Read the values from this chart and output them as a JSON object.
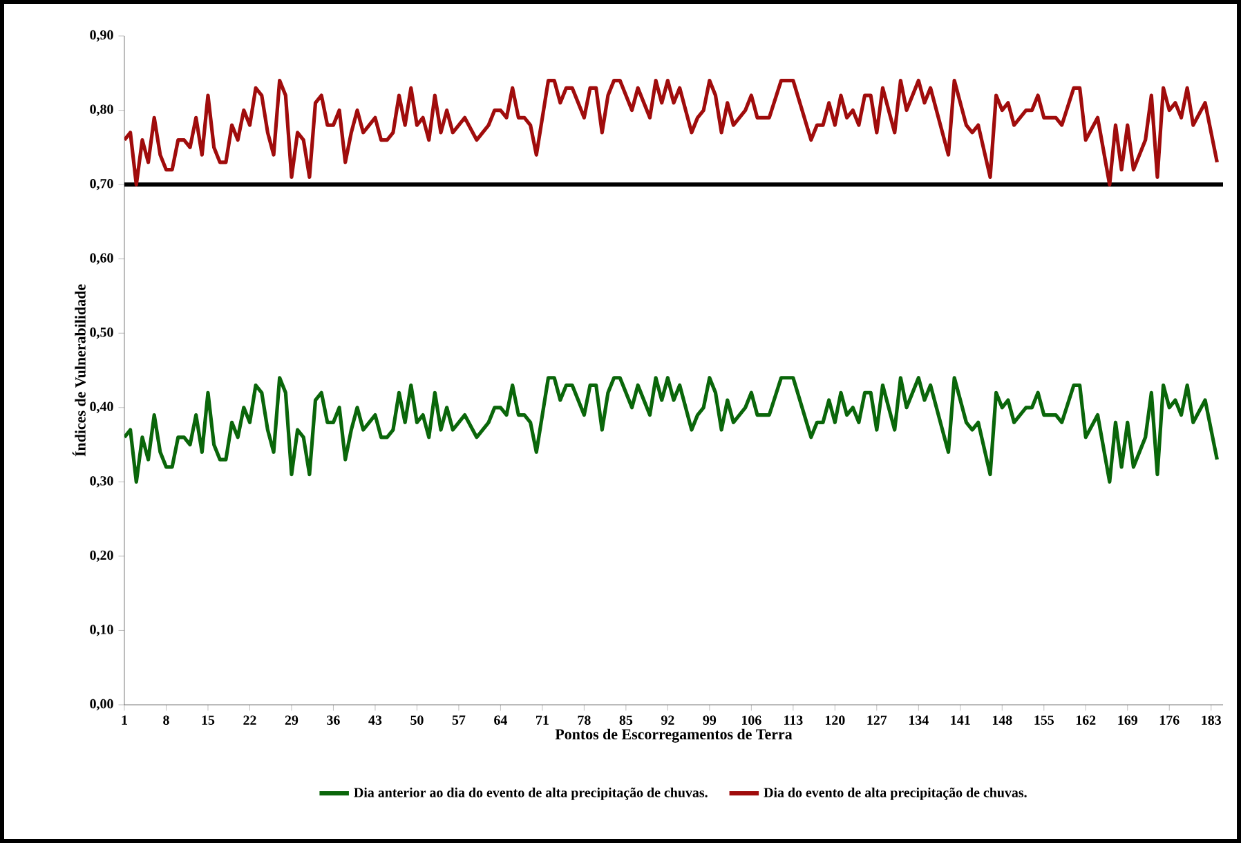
{
  "chart_data": {
    "type": "line",
    "xlabel": "Pontos de Escorregamentos de Terra",
    "ylabel": "Índices de Vulnerabilidade",
    "x": [
      1,
      2,
      3,
      4,
      5,
      6,
      7,
      8,
      9,
      10,
      11,
      12,
      13,
      14,
      15,
      16,
      17,
      18,
      19,
      20,
      21,
      22,
      23,
      24,
      25,
      26,
      27,
      28,
      29,
      30,
      31,
      32,
      33,
      34,
      35,
      36,
      37,
      38,
      39,
      40,
      41,
      43,
      44,
      45,
      46,
      47,
      48,
      49,
      50,
      51,
      52,
      53,
      54,
      55,
      56,
      58,
      60,
      62,
      63,
      64,
      65,
      66,
      67,
      68,
      69,
      70,
      72,
      73,
      74,
      75,
      76,
      78,
      79,
      80,
      81,
      82,
      83,
      84,
      86,
      87,
      88,
      89,
      90,
      91,
      92,
      93,
      94,
      96,
      97,
      98,
      99,
      100,
      101,
      102,
      103,
      105,
      106,
      107,
      109,
      111,
      113,
      116,
      117,
      118,
      119,
      120,
      121,
      122,
      123,
      124,
      125,
      126,
      127,
      128,
      130,
      131,
      132,
      134,
      135,
      136,
      139,
      140,
      142,
      143,
      144,
      146,
      147,
      148,
      149,
      150,
      152,
      153,
      154,
      155,
      157,
      158,
      160,
      161,
      162,
      164,
      166,
      167,
      168,
      169,
      170,
      172,
      173,
      174,
      175,
      176,
      177,
      178,
      179,
      180,
      182,
      184
    ],
    "series": [
      {
        "name": "Dia anterior ao dia do evento de alta precipitação de chuvas.",
        "color": "#0a660a",
        "values": [
          0.36,
          0.37,
          0.3,
          0.36,
          0.33,
          0.39,
          0.34,
          0.32,
          0.32,
          0.36,
          0.36,
          0.35,
          0.39,
          0.34,
          0.42,
          0.35,
          0.33,
          0.33,
          0.38,
          0.36,
          0.4,
          0.38,
          0.43,
          0.42,
          0.37,
          0.34,
          0.44,
          0.42,
          0.31,
          0.37,
          0.36,
          0.31,
          0.41,
          0.42,
          0.38,
          0.38,
          0.4,
          0.33,
          0.37,
          0.4,
          0.37,
          0.39,
          0.36,
          0.36,
          0.37,
          0.42,
          0.38,
          0.43,
          0.38,
          0.39,
          0.36,
          0.42,
          0.37,
          0.4,
          0.37,
          0.39,
          0.36,
          0.38,
          0.4,
          0.4,
          0.39,
          0.43,
          0.39,
          0.39,
          0.38,
          0.34,
          0.44,
          0.44,
          0.41,
          0.43,
          0.43,
          0.39,
          0.43,
          0.43,
          0.37,
          0.42,
          0.44,
          0.44,
          0.4,
          0.43,
          0.41,
          0.39,
          0.44,
          0.41,
          0.44,
          0.41,
          0.43,
          0.37,
          0.39,
          0.4,
          0.44,
          0.42,
          0.37,
          0.41,
          0.38,
          0.4,
          0.42,
          0.39,
          0.39,
          0.44,
          0.44,
          0.36,
          0.38,
          0.38,
          0.41,
          0.38,
          0.42,
          0.39,
          0.4,
          0.38,
          0.42,
          0.42,
          0.37,
          0.43,
          0.37,
          0.44,
          0.4,
          0.44,
          0.41,
          0.43,
          0.34,
          0.44,
          0.38,
          0.37,
          0.38,
          0.31,
          0.42,
          0.4,
          0.41,
          0.38,
          0.4,
          0.4,
          0.42,
          0.39,
          0.39,
          0.38,
          0.43,
          0.43,
          0.36,
          0.39,
          0.3,
          0.38,
          0.32,
          0.38,
          0.32,
          0.36,
          0.42,
          0.31,
          0.43,
          0.4,
          0.41,
          0.39,
          0.43,
          0.38,
          0.41,
          0.33
        ]
      },
      {
        "name": "Dia do evento de alta precipitação de chuvas.",
        "color": "#a00c0c",
        "values": [
          0.76,
          0.77,
          0.7,
          0.76,
          0.73,
          0.79,
          0.74,
          0.72,
          0.72,
          0.76,
          0.76,
          0.75,
          0.79,
          0.74,
          0.82,
          0.75,
          0.73,
          0.73,
          0.78,
          0.76,
          0.8,
          0.78,
          0.83,
          0.82,
          0.77,
          0.74,
          0.84,
          0.82,
          0.71,
          0.77,
          0.76,
          0.71,
          0.81,
          0.82,
          0.78,
          0.78,
          0.8,
          0.73,
          0.77,
          0.8,
          0.77,
          0.79,
          0.76,
          0.76,
          0.77,
          0.82,
          0.78,
          0.83,
          0.78,
          0.79,
          0.76,
          0.82,
          0.77,
          0.8,
          0.77,
          0.79,
          0.76,
          0.78,
          0.8,
          0.8,
          0.79,
          0.83,
          0.79,
          0.79,
          0.78,
          0.74,
          0.84,
          0.84,
          0.81,
          0.83,
          0.83,
          0.79,
          0.83,
          0.83,
          0.77,
          0.82,
          0.84,
          0.84,
          0.8,
          0.83,
          0.81,
          0.79,
          0.84,
          0.81,
          0.84,
          0.81,
          0.83,
          0.77,
          0.79,
          0.8,
          0.84,
          0.82,
          0.77,
          0.81,
          0.78,
          0.8,
          0.82,
          0.79,
          0.79,
          0.84,
          0.84,
          0.76,
          0.78,
          0.78,
          0.81,
          0.78,
          0.82,
          0.79,
          0.8,
          0.78,
          0.82,
          0.82,
          0.77,
          0.83,
          0.77,
          0.84,
          0.8,
          0.84,
          0.81,
          0.83,
          0.74,
          0.84,
          0.78,
          0.77,
          0.78,
          0.71,
          0.82,
          0.8,
          0.81,
          0.78,
          0.8,
          0.8,
          0.82,
          0.79,
          0.79,
          0.78,
          0.83,
          0.83,
          0.76,
          0.79,
          0.7,
          0.78,
          0.72,
          0.78,
          0.72,
          0.76,
          0.82,
          0.71,
          0.83,
          0.8,
          0.81,
          0.79,
          0.83,
          0.78,
          0.81,
          0.73
        ]
      }
    ],
    "xlim": [
      1,
      185
    ],
    "xticks": [
      1,
      8,
      15,
      22,
      29,
      36,
      43,
      50,
      57,
      64,
      71,
      78,
      85,
      92,
      99,
      106,
      113,
      120,
      127,
      134,
      141,
      148,
      155,
      162,
      169,
      176,
      183
    ],
    "ylim": [
      0,
      0.9
    ],
    "yticks": [
      {
        "value": 0,
        "label": "0,00"
      },
      {
        "value": 0.1,
        "label": "0,10"
      },
      {
        "value": 0.2,
        "label": "0,20"
      },
      {
        "value": 0.3,
        "label": "0,30"
      },
      {
        "value": 0.4,
        "label": "0,40"
      },
      {
        "value": 0.5,
        "label": "0,50"
      },
      {
        "value": 0.6,
        "label": "0,60"
      },
      {
        "value": 0.7,
        "label": "0,70"
      },
      {
        "value": 0.8,
        "label": "0,80"
      },
      {
        "value": 0.9,
        "label": "0,90"
      }
    ],
    "ref_lines": [
      {
        "axis": "y",
        "value": 0.7,
        "color": "#000000"
      }
    ],
    "grid": false,
    "legend": "bottom",
    "marker": "none",
    "line_style": "solid"
  }
}
